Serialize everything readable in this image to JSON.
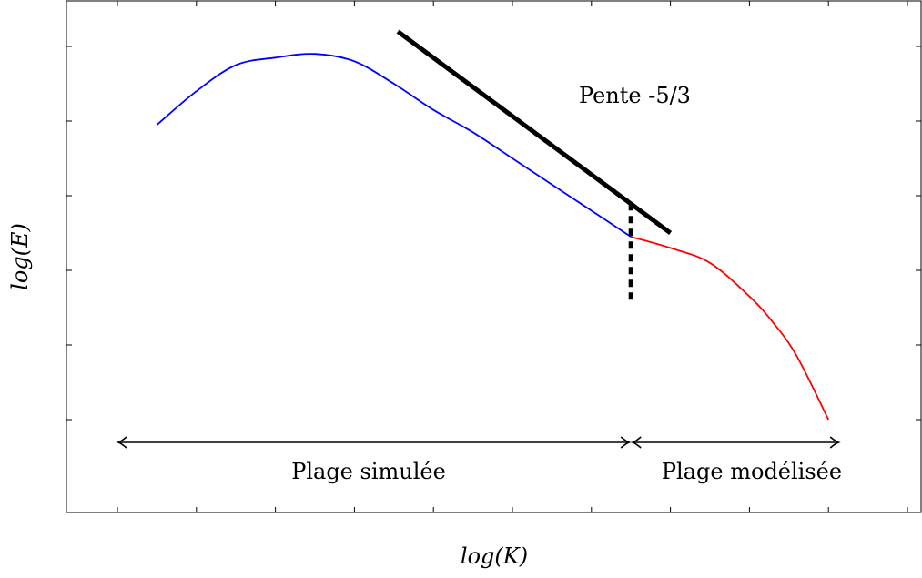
{
  "chart_data": {
    "type": "line",
    "title": "",
    "xlabel": "log(K)",
    "ylabel": "log(E)",
    "xlim": [
      0,
      10
    ],
    "ylim": [
      0,
      10
    ],
    "grid": false,
    "series": [
      {
        "color": "#0000ff",
        "x": [
          0.5,
          1.0,
          1.5,
          2.0,
          2.5,
          3.0,
          3.5,
          4.0,
          4.5,
          5.0,
          5.5,
          6.0,
          6.5
        ],
        "y": [
          7.9,
          8.8,
          9.5,
          9.7,
          9.8,
          9.6,
          9.0,
          8.3,
          7.7,
          7.0,
          6.3,
          5.6,
          4.9
        ]
      },
      {
        "color": "#ff0000",
        "x": [
          6.5,
          7.0,
          7.5,
          8.0,
          8.3,
          8.6,
          9.0
        ],
        "y": [
          4.9,
          4.6,
          4.2,
          3.3,
          2.6,
          1.7,
          0.0
        ]
      }
    ],
    "annotations": [
      {
        "kind": "reference-line",
        "label": "Pente -5/3",
        "color": "#000000",
        "x": [
          3.55,
          6.5,
          7.0
        ],
        "y": [
          10.4,
          5.8,
          5.0
        ]
      },
      {
        "kind": "dashed-vline",
        "x": 6.5,
        "y": [
          5.8,
          3.2
        ]
      },
      {
        "kind": "range",
        "label": "Plage simulée",
        "x": [
          0.0,
          6.5
        ]
      },
      {
        "kind": "range",
        "label": "Plage modélisée",
        "x": [
          6.5,
          9.15
        ]
      }
    ],
    "x_ticks": [
      0.0,
      1.0,
      2.0,
      3.0,
      4.0,
      5.0,
      6.0,
      7.0,
      8.0,
      9.0,
      10.0
    ],
    "y_ticks": [
      0.0,
      2.0,
      4.0,
      6.0,
      8.0,
      10.0
    ]
  }
}
